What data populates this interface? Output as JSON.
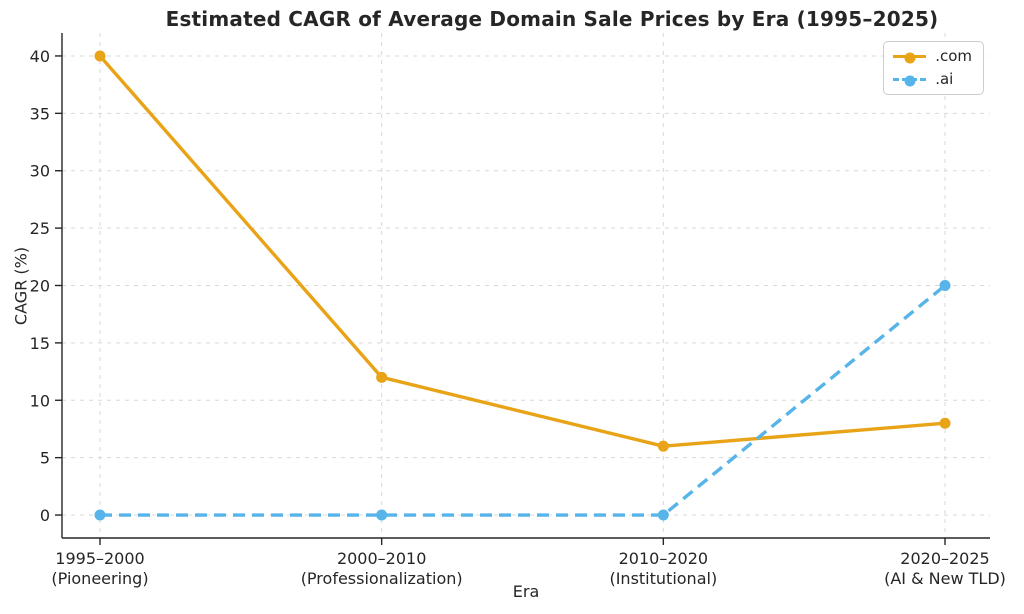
{
  "chart_data": {
    "type": "line",
    "title": "Estimated CAGR of Average Domain Sale Prices by Era (1995–2025)",
    "xlabel": "Era",
    "ylabel": "CAGR (%)",
    "categories": [
      [
        "1995–2000",
        "(Pioneering)"
      ],
      [
        "2000–2010",
        "(Professionalization)"
      ],
      [
        "2010–2020",
        "(Institutional)"
      ],
      [
        "2020–2025",
        "(AI & New TLD)"
      ]
    ],
    "series": [
      {
        "name": ".com",
        "values": [
          40,
          12,
          6,
          8
        ],
        "color": "#E8A317",
        "line_style": "solid"
      },
      {
        "name": ".ai",
        "values": [
          0,
          0,
          0,
          20
        ],
        "color": "#56B4E9",
        "line_style": "dashed"
      }
    ],
    "yticks": [
      0,
      5,
      10,
      15,
      20,
      25,
      30,
      35,
      40
    ],
    "ylim": [
      0,
      40
    ],
    "grid": true,
    "legend_position": "upper right"
  },
  "colors": {
    "grid": "#d9d9d9",
    "axis": "#262626",
    "text": "#262626",
    "background": "#ffffff"
  }
}
